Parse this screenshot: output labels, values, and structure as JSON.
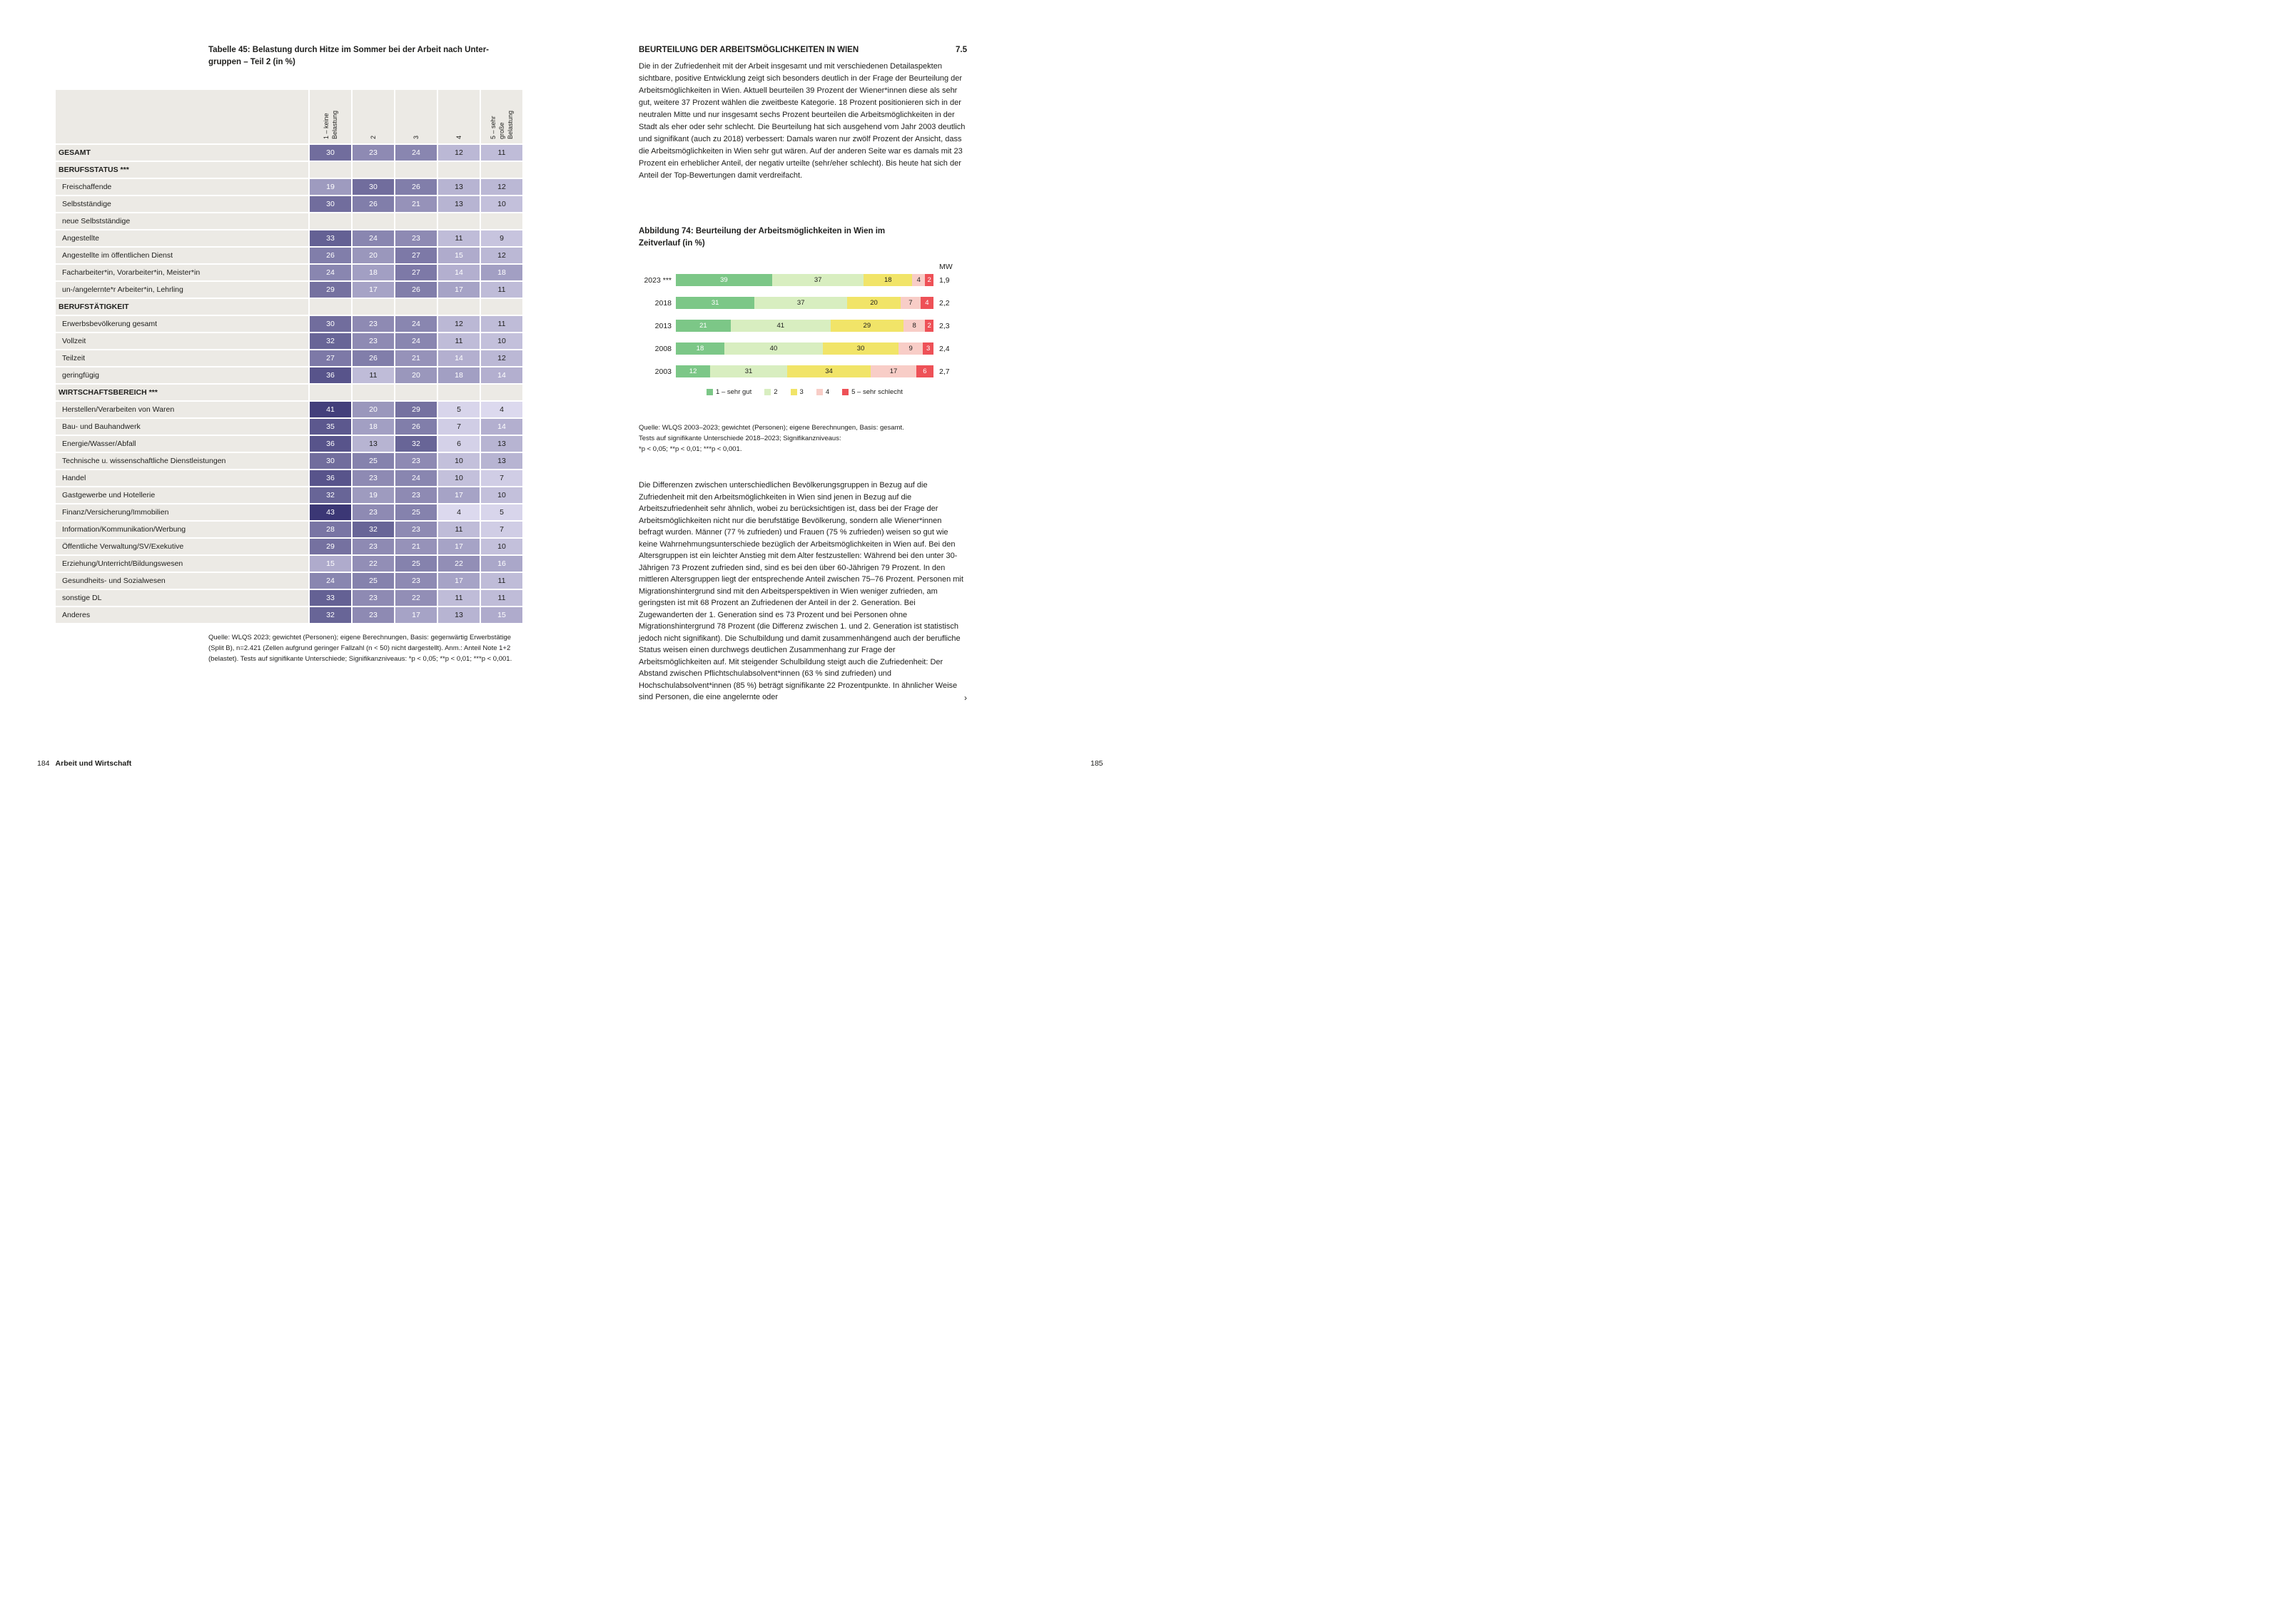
{
  "table": {
    "title_lines": [
      "Tabelle 45: Belastung durch Hitze im Sommer bei der Arbeit nach Unter-",
      "gruppen – Teil 2 (in %)"
    ],
    "columns": [
      {
        "lines": [
          "1 – keine",
          "Belastung"
        ]
      },
      {
        "lines": [
          "2"
        ]
      },
      {
        "lines": [
          "3"
        ]
      },
      {
        "lines": [
          "4"
        ]
      },
      {
        "lines": [
          "5 – sehr",
          "große",
          "Belastung"
        ]
      }
    ],
    "rows": [
      {
        "label": "GESAMT",
        "bold": true,
        "values": [
          30,
          23,
          24,
          12,
          11
        ]
      },
      {
        "label": "BERUFSSTATUS ***",
        "section": true
      },
      {
        "label": "Freischaffende",
        "values": [
          19,
          30,
          26,
          13,
          12
        ]
      },
      {
        "label": "Selbstständige",
        "values": [
          30,
          26,
          21,
          13,
          10
        ]
      },
      {
        "label": "neue Selbstständige"
      },
      {
        "label": "Angestellte",
        "values": [
          33,
          24,
          23,
          11,
          9
        ]
      },
      {
        "label": "Angestellte im öffentlichen Dienst",
        "values": [
          26,
          20,
          27,
          15,
          12
        ]
      },
      {
        "label": "Facharbeiter*in, Vorarbeiter*in, Meister*in",
        "values": [
          24,
          18,
          27,
          14,
          18
        ]
      },
      {
        "label": "un-/angelernte*r Arbeiter*in, Lehrling",
        "values": [
          29,
          17,
          26,
          17,
          11
        ]
      },
      {
        "label": "BERUFSTÄTIGKEIT",
        "section": true
      },
      {
        "label": "Erwerbsbevölkerung gesamt",
        "values": [
          30,
          23,
          24,
          12,
          11
        ]
      },
      {
        "label": "Vollzeit",
        "values": [
          32,
          23,
          24,
          11,
          10
        ]
      },
      {
        "label": "Teilzeit",
        "values": [
          27,
          26,
          21,
          14,
          12
        ]
      },
      {
        "label": "geringfügig",
        "values": [
          36,
          11,
          20,
          18,
          14
        ]
      },
      {
        "label": "WIRTSCHAFTSBEREICH ***",
        "section": true
      },
      {
        "label": "Herstellen/Verarbeiten von Waren",
        "values": [
          41,
          20,
          29,
          5,
          4
        ]
      },
      {
        "label": "Bau- und Bauhandwerk",
        "values": [
          35,
          18,
          26,
          7,
          14
        ]
      },
      {
        "label": "Energie/Wasser/Abfall",
        "values": [
          36,
          13,
          32,
          6,
          13
        ]
      },
      {
        "label": "Technische u. wissenschaftliche Dienstleistungen",
        "values": [
          30,
          25,
          23,
          10,
          13
        ]
      },
      {
        "label": "Handel",
        "values": [
          36,
          23,
          24,
          10,
          7
        ]
      },
      {
        "label": "Gastgewerbe und Hotellerie",
        "values": [
          32,
          19,
          23,
          17,
          10
        ]
      },
      {
        "label": "Finanz/Versicherung/Immobilien",
        "values": [
          43,
          23,
          25,
          4,
          5
        ]
      },
      {
        "label": "Information/Kommunikation/Werbung",
        "values": [
          28,
          32,
          23,
          11,
          7
        ]
      },
      {
        "label": "Öffentliche Verwaltung/SV/Exekutive",
        "values": [
          29,
          23,
          21,
          17,
          10
        ]
      },
      {
        "label": "Erziehung/Unterricht/Bildungswesen",
        "values": [
          15,
          22,
          25,
          22,
          16
        ]
      },
      {
        "label": "Gesundheits- und Sozialwesen",
        "values": [
          24,
          25,
          23,
          17,
          11
        ]
      },
      {
        "label": "sonstige DL",
        "values": [
          33,
          23,
          22,
          11,
          11
        ]
      },
      {
        "label": "Anderes",
        "values": [
          32,
          23,
          17,
          13,
          15
        ]
      }
    ],
    "footnote": "Quelle: WLQS 2023; gewichtet (Personen); eigene Berechnungen, Basis: gegenwärtig Erwerbstätige (Split B), n=2.421 (Zellen aufgrund geringer Fallzahl (n < 50) nicht dargestellt). Anm.: Anteil Note 1+2 (belastet). Tests auf signifikante Unterschiede; Signifikanzniveaus: *p < 0,05; **p < 0,01; ***p < 0,001.",
    "shade_colors": {
      "light": "#dcd9ee",
      "dark": "#3b3775",
      "min_value": 4,
      "max_value": 43
    }
  },
  "article": {
    "heading": "BEURTEILUNG DER ARBEITSMÖGLICHKEITEN IN WIEN",
    "section_number": "7.5",
    "paragraph1": "Die in der Zufriedenheit mit der Arbeit insgesamt und mit verschiedenen Detailaspekten sichtbare, positive Entwicklung zeigt sich besonders deutlich in der Frage der Beurteilung der Arbeitsmöglichkeiten in Wien. Aktuell beurteilen 39 Prozent der Wiener*innen diese als sehr gut, weitere 37 Prozent wählen die zweitbeste Kategorie. 18 Prozent positionieren sich in der neutralen Mitte und nur insgesamt sechs Prozent beurteilen die Arbeitsmöglichkeiten in der Stadt als eher oder sehr schlecht. Die Beurteilung hat sich ausgehend vom Jahr 2003 deutlich und signifikant (auch zu 2018) verbessert: Damals waren nur zwölf Prozent der Ansicht, dass die Arbeitsmöglichkeiten in Wien sehr gut wären. Auf der anderen Seite war es damals mit 23 Prozent ein erheblicher Anteil, der negativ urteilte (sehr/eher schlecht). Bis heute hat sich der Anteil der Top-Bewertungen damit verdreifacht.",
    "paragraph2": "Die Differenzen zwischen unterschiedlichen Bevölkerungsgruppen in Bezug auf die Zufriedenheit mit den Arbeitsmöglichkeiten in Wien sind jenen in Bezug auf die Arbeitszufriedenheit sehr ähnlich, wobei zu berücksichtigen ist, dass bei der Frage der Arbeitsmöglichkeiten nicht nur die berufstätige Bevölkerung, sondern alle Wiener*innen befragt wurden. Männer (77 % zufrieden) und Frauen (75 % zufrieden) weisen so gut wie keine Wahrnehmungsunterschiede bezüglich der Arbeitsmöglichkeiten in Wien auf. Bei den Altersgruppen ist ein leichter Anstieg mit dem Alter festzustellen: Während bei den unter 30-Jährigen 73 Prozent zufrieden sind, sind es bei den über 60-Jährigen 79 Prozent. In den mittleren Altersgruppen liegt der entsprechende Anteil zwischen 75–76 Prozent. Personen mit Migrationshintergrund sind mit den Arbeitsperspektiven in Wien weniger zufrieden, am geringsten ist mit 68 Prozent an Zufriedenen der Anteil in der 2. Generation. Bei Zugewanderten der 1. Generation sind es 73 Prozent und bei Personen ohne Migrationshintergrund 78 Prozent (die Differenz zwischen 1. und 2. Generation ist statistisch jedoch nicht signifikant). Die Schulbildung und damit zusammenhängend auch der berufliche Status weisen einen durchwegs deutlichen Zusammenhang zur Frage der Arbeitsmöglichkeiten auf. Mit steigender Schulbildung steigt auch die Zufriedenheit: Der Abstand zwischen Pflichtschulabsolvent*innen (63 % sind zufrieden) und Hochschulabsolvent*innen (85 %) beträgt signifikante 22 Prozentpunkte. In ähnlicher Weise sind Personen, die eine angelernte oder",
    "continuation_mark": "›"
  },
  "chart_data": {
    "type": "bar",
    "subtype": "horizontal-stacked",
    "title_lines": [
      "Abbildung 74: Beurteilung der Arbeitsmöglichkeiten in Wien im",
      "Zeitverlauf (in %)"
    ],
    "categories": [
      "2023 ***",
      "2018",
      "2013",
      "2008",
      "2003"
    ],
    "series": [
      {
        "name": "1 – sehr gut",
        "color": "#7cc787",
        "label_color": "#ffffff",
        "values": [
          39,
          31,
          21,
          18,
          12
        ]
      },
      {
        "name": "2",
        "color": "#d8eec0",
        "label_color": "#1e1e1c",
        "values": [
          37,
          37,
          41,
          40,
          31
        ]
      },
      {
        "name": "3",
        "color": "#f1e468",
        "label_color": "#1e1e1c",
        "values": [
          18,
          20,
          29,
          30,
          34
        ]
      },
      {
        "name": "4",
        "color": "#f8cdc7",
        "label_color": "#1e1e1c",
        "values": [
          4,
          7,
          8,
          9,
          17
        ]
      },
      {
        "name": "5 – sehr schlecht",
        "color": "#ee5157",
        "label_color": "#ffffff",
        "values": [
          2,
          4,
          2,
          3,
          6
        ]
      }
    ],
    "mw_header": "MW",
    "mw_values": [
      "1,9",
      "2,2",
      "2,3",
      "2,4",
      "2,7"
    ],
    "legend_position": "bottom",
    "xlim": [
      0,
      100
    ],
    "source_lines": [
      "Quelle: WLQS 2003–2023; gewichtet (Personen); eigene Berechnungen, Basis: gesamt.",
      "Tests auf signifikante Unterschiede 2018–2023; Signifikanzniveaus:",
      "*p < 0,05; **p < 0,01; ***p < 0,001."
    ]
  },
  "footer": {
    "page_number_left": "184",
    "chapter": "Arbeit und Wirtschaft",
    "page_number_right": "185"
  }
}
